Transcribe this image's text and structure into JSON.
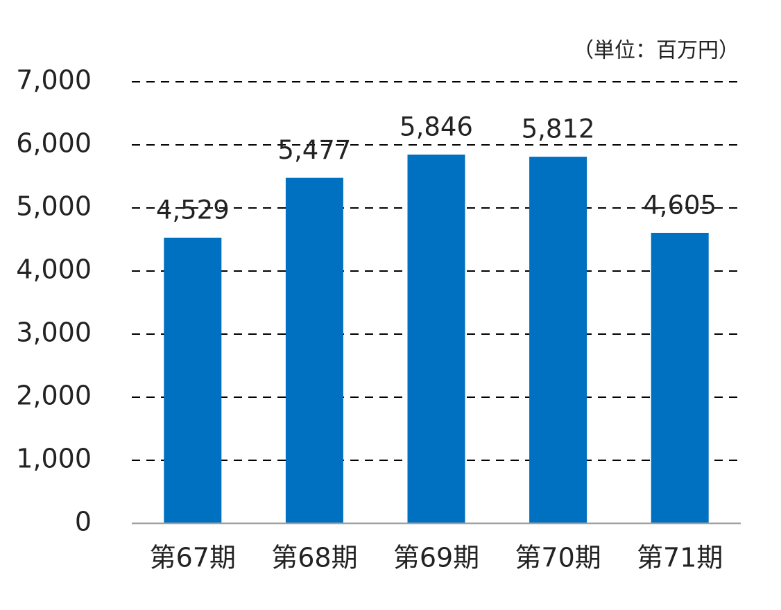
{
  "chart_data": {
    "type": "bar",
    "unit_note": "（単位：百万円）",
    "categories": [
      "第67期",
      "第68期",
      "第69期",
      "第70期",
      "第71期"
    ],
    "values": [
      4529,
      5477,
      5846,
      5812,
      4605
    ],
    "value_labels": [
      "4,529",
      "5,477",
      "5,846",
      "5,812",
      "4,605"
    ],
    "color": "#0070c0",
    "ylim": [
      0,
      7000
    ],
    "yticks": [
      0,
      {
        "value": 1000,
        "label": "1,000"
      },
      {
        "value": 2000,
        "label": "2,000"
      },
      {
        "value": 3000,
        "label": "3,000"
      },
      {
        "value": 4000,
        "label": "4,000"
      },
      {
        "value": 5000,
        "label": "5,000"
      },
      {
        "value": 6000,
        "label": "6,000"
      },
      {
        "value": 7000,
        "label": "7,000"
      }
    ],
    "grid": true
  }
}
